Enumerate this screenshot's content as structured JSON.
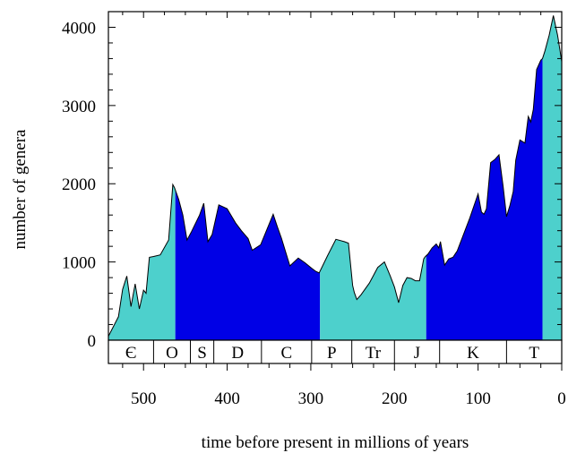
{
  "chart_data": {
    "type": "area",
    "title": "",
    "xlabel": "time before present in millions of years",
    "ylabel": "number of genera",
    "xlim": [
      542,
      0
    ],
    "ylim": [
      0,
      4200
    ],
    "xticks": [
      500,
      400,
      300,
      200,
      100,
      0
    ],
    "yticks": [
      0,
      1000,
      2000,
      3000,
      4000
    ],
    "grid": false,
    "colors": {
      "light": "#4dd0cc",
      "dark": "#0000e6",
      "outline": "#000000"
    },
    "x": [
      542,
      530,
      525,
      520,
      515,
      510,
      505,
      500,
      497,
      493,
      488,
      480,
      470,
      465,
      463,
      458,
      453,
      448,
      443,
      433,
      428,
      423,
      418,
      410,
      400,
      390,
      383,
      375,
      370,
      360,
      355,
      345,
      340,
      335,
      325,
      320,
      315,
      307,
      299,
      294,
      290,
      280,
      270,
      260,
      255,
      250,
      248,
      245,
      240,
      230,
      225,
      220,
      212,
      205,
      200,
      195,
      190,
      185,
      180,
      175,
      170,
      165,
      163,
      160,
      155,
      150,
      147,
      145,
      140,
      135,
      130,
      125,
      120,
      110,
      100,
      96,
      93,
      90,
      85,
      80,
      75,
      70,
      66,
      62,
      58,
      55,
      50,
      44,
      40,
      37,
      34,
      30,
      25,
      23,
      20,
      15,
      10,
      5,
      2,
      0
    ],
    "values": [
      50,
      300,
      650,
      820,
      430,
      720,
      400,
      640,
      600,
      1060,
      1070,
      1090,
      1280,
      1990,
      1950,
      1800,
      1600,
      1280,
      1380,
      1600,
      1750,
      1260,
      1350,
      1730,
      1680,
      1500,
      1400,
      1300,
      1150,
      1220,
      1350,
      1610,
      1450,
      1300,
      950,
      1000,
      1050,
      990,
      920,
      880,
      860,
      1080,
      1290,
      1260,
      1240,
      700,
      610,
      520,
      580,
      730,
      830,
      930,
      1000,
      820,
      680,
      480,
      700,
      800,
      790,
      760,
      760,
      1040,
      1070,
      1100,
      1180,
      1230,
      1180,
      1260,
      960,
      1040,
      1060,
      1140,
      1280,
      1560,
      1870,
      1640,
      1610,
      1680,
      2270,
      2310,
      2370,
      1960,
      1580,
      1720,
      1900,
      2300,
      2560,
      2520,
      2860,
      2790,
      2950,
      3460,
      3580,
      3600,
      3700,
      3900,
      4150,
      3900,
      3700,
      3560
    ],
    "segments": [
      {
        "from": 542,
        "to": 462,
        "fill": "light"
      },
      {
        "from": 462,
        "to": 289,
        "fill": "dark"
      },
      {
        "from": 289,
        "to": 162,
        "fill": "light"
      },
      {
        "from": 162,
        "to": 23,
        "fill": "dark"
      },
      {
        "from": 23,
        "to": 0,
        "fill": "light"
      }
    ],
    "periods": [
      {
        "label": "Є",
        "from": 542,
        "to": 488
      },
      {
        "label": "O",
        "from": 488,
        "to": 444
      },
      {
        "label": "S",
        "from": 444,
        "to": 416
      },
      {
        "label": "D",
        "from": 416,
        "to": 359
      },
      {
        "label": "C",
        "from": 359,
        "to": 299
      },
      {
        "label": "P",
        "from": 299,
        "to": 251
      },
      {
        "label": "Tr",
        "from": 251,
        "to": 200
      },
      {
        "label": "J",
        "from": 200,
        "to": 146
      },
      {
        "label": "K",
        "from": 146,
        "to": 66
      },
      {
        "label": "T",
        "from": 66,
        "to": 0
      }
    ]
  }
}
